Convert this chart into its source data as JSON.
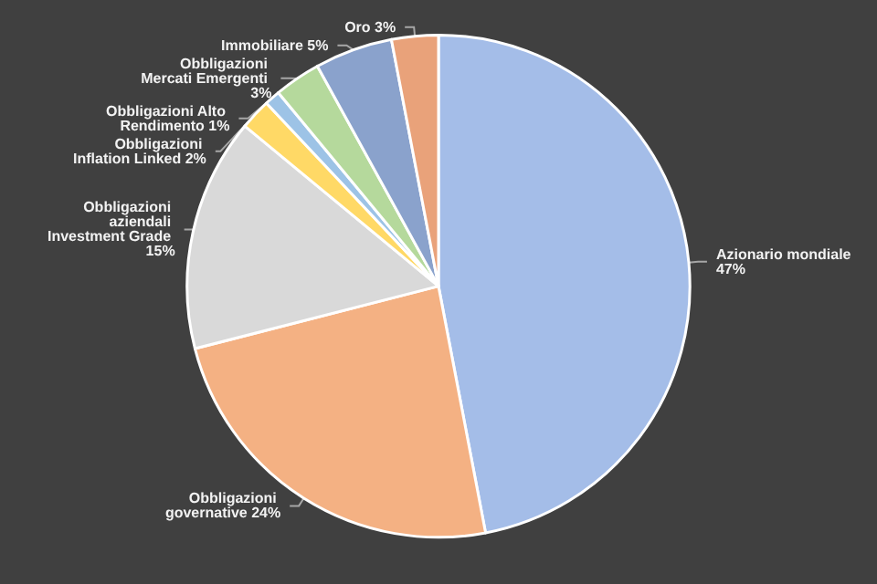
{
  "chart_data": {
    "type": "pie",
    "categories": [
      "Azionario mondiale",
      "Obbligazioni governative",
      "Obbligazioni aziendali Investment Grade",
      "Obbligazioni Inflation Linked",
      "Obbligazioni Alto Rendimento",
      "Obbligazioni Mercati Emergenti",
      "Immobiliare",
      "Oro"
    ],
    "values": [
      47,
      24,
      15,
      2,
      1,
      3,
      5,
      3
    ],
    "colors": [
      "#a4bde8",
      "#f4b183",
      "#d9d9d9",
      "#ffd966",
      "#9dc3e6",
      "#b5d99c",
      "#8aa2cc",
      "#e9a27a"
    ],
    "value_labels": [
      "47%",
      "24%",
      "15%",
      "2%",
      "1%",
      "3%",
      "5%",
      "3%"
    ],
    "legend": false
  }
}
